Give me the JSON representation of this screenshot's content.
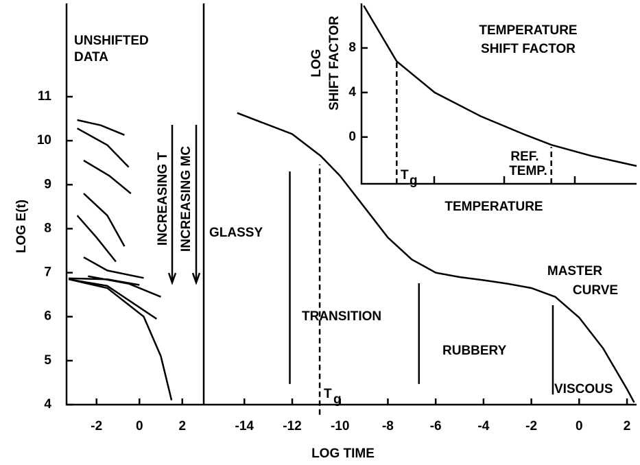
{
  "chart_data": [
    {
      "type": "line",
      "title": [
        "UNSHIFTED",
        "DATA"
      ],
      "ylabel": "LOG E(t)",
      "annotations": [
        "INCREASING T",
        "INCREASING MC"
      ],
      "xlim": [
        -3.4,
        3.0
      ],
      "xticks": [
        -2,
        0,
        2
      ],
      "ylim": [
        4,
        13.12
      ],
      "yticks": [
        4,
        5,
        6,
        7,
        8,
        9,
        10,
        11
      ],
      "series": [
        {
          "color": "#000000",
          "x": [
            -2.9,
            -1.8,
            -0.7
          ],
          "values": [
            10.47,
            10.35,
            10.13
          ]
        },
        {
          "color": "#000000",
          "x": [
            -2.9,
            -1.5,
            -0.5
          ],
          "values": [
            10.28,
            9.9,
            9.4
          ]
        },
        {
          "color": "#000000",
          "x": [
            -2.6,
            -1.4,
            -0.4
          ],
          "values": [
            9.55,
            9.2,
            8.8
          ]
        },
        {
          "color": "#000000",
          "x": [
            -2.6,
            -1.5,
            -0.7
          ],
          "values": [
            8.8,
            8.3,
            7.6
          ]
        },
        {
          "color": "#000000",
          "x": [
            -2.9,
            -2.0,
            -1.1
          ],
          "values": [
            8.3,
            7.8,
            7.25
          ]
        },
        {
          "color": "#000000",
          "x": [
            -2.6,
            -1.5,
            0.2
          ],
          "values": [
            7.35,
            7.05,
            6.88
          ]
        },
        {
          "color": "#000000",
          "x": [
            -3.3,
            -1.5,
            0.0
          ],
          "values": [
            6.87,
            6.85,
            6.72
          ]
        },
        {
          "color": "#000000",
          "x": [
            -2.4,
            -0.5,
            1.0
          ],
          "values": [
            6.92,
            6.75,
            6.45
          ]
        },
        {
          "color": "#000000",
          "x": [
            -3.3,
            -1.5,
            0.8
          ],
          "values": [
            6.85,
            6.7,
            5.95
          ]
        },
        {
          "color": "#000000",
          "x": [
            -3.3,
            -1.5,
            0.2,
            1.0,
            1.5
          ],
          "values": [
            6.85,
            6.65,
            6.0,
            5.1,
            4.1
          ]
        }
      ]
    },
    {
      "type": "line",
      "title": [
        "MASTER",
        "CURVE"
      ],
      "xlabel": "LOG TIME",
      "regions": [
        "GLASSY",
        "TRANSITION",
        "RUBBERY",
        "VISCOUS"
      ],
      "tg": {
        "text": "T",
        "sub": "g"
      },
      "xlim": [
        -15.7,
        2.4
      ],
      "xticks": [
        -14,
        -12,
        -10,
        -8,
        -6,
        -4,
        -2,
        0,
        2
      ],
      "ylim": [
        4,
        13.12
      ],
      "dividers": [
        {
          "x": -12.1,
          "y": [
            4.47,
            9.3
          ],
          "dashed": false
        },
        {
          "x": -10.85,
          "y": [
            3.77,
            9.46
          ],
          "dashed": true
        },
        {
          "x": -6.7,
          "y": [
            4.47,
            6.76
          ],
          "dashed": false
        },
        {
          "x": -1.1,
          "y": [
            4.23,
            6.26
          ],
          "dashed": false
        }
      ],
      "series": [
        {
          "color": "#000000",
          "x": [
            -14.3,
            -12,
            -10.8,
            -10,
            -9,
            -8,
            -7,
            -6,
            -5,
            -4,
            -3,
            -2,
            -1,
            0,
            1,
            2,
            2.3
          ],
          "values": [
            10.63,
            10.15,
            9.65,
            9.2,
            8.5,
            7.8,
            7.3,
            7.0,
            6.9,
            6.83,
            6.75,
            6.65,
            6.45,
            5.98,
            5.28,
            4.35,
            4.05
          ]
        }
      ]
    },
    {
      "type": "line",
      "title": [
        "TEMPERATURE",
        "SHIFT FACTOR"
      ],
      "ylabel": [
        "LOG",
        "SHIFT FACTOR"
      ],
      "xlabel": "TEMPERATURE",
      "tg": {
        "text": "T",
        "sub": "g"
      },
      "ref": [
        "REF.",
        "TEMP."
      ],
      "xlim": [
        0,
        10
      ],
      "ylim": [
        -4.2,
        12
      ],
      "yticks": [
        0,
        4,
        8
      ],
      "dividers": [
        {
          "x": 1.28,
          "y": [
            -4.2,
            6.8
          ],
          "dashed": true
        },
        {
          "x": 6.9,
          "y": [
            -4.2,
            -0.9
          ],
          "dashed": true
        }
      ],
      "series": [
        {
          "color": "#000000",
          "x": [
            0.08,
            1.28,
            2.66,
            4.35,
            5.85,
            6.9,
            8.37,
            10
          ],
          "values": [
            11.8,
            6.8,
            4.0,
            1.85,
            0.3,
            -0.7,
            -1.7,
            -2.6
          ]
        }
      ]
    }
  ]
}
